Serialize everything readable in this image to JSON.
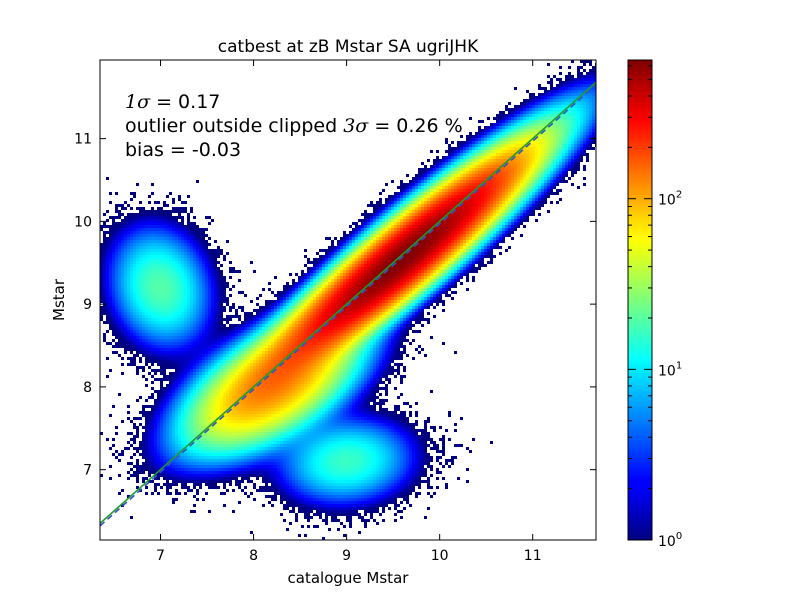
{
  "chart_data": {
    "type": "heatmap",
    "title": "catbest at zB Mstar SA ugriJHK",
    "xlabel": "catalogue Mstar",
    "ylabel": "Mstar",
    "xlim": [
      6.35,
      11.68
    ],
    "ylim": [
      6.15,
      11.95
    ],
    "x_ticks": [
      "7",
      "8",
      "9",
      "10",
      "11"
    ],
    "y_ticks": [
      "7",
      "8",
      "9",
      "10",
      "11"
    ],
    "x_tick_values": [
      7,
      8,
      9,
      10,
      11
    ],
    "y_tick_values": [
      7,
      8,
      9,
      10,
      11
    ],
    "grid": false,
    "colormap": "jet",
    "colorbar": {
      "scale": "log",
      "range": [
        1,
        650
      ],
      "ticks": [
        {
          "value": 1,
          "base": "10",
          "exp": "0"
        },
        {
          "value": 10,
          "base": "10",
          "exp": "1"
        },
        {
          "value": 100,
          "base": "10",
          "exp": "2"
        }
      ]
    },
    "reference_lines": [
      {
        "type": "one-to-one",
        "style": "solid",
        "color": "#1a9e2a"
      },
      {
        "type": "fit",
        "style": "dashed",
        "color": "#3a4fc4",
        "offset": -0.03
      }
    ],
    "annotations": {
      "sigma_symbol": "1σ",
      "sigma_text": " = 0.17",
      "outlier_text": "outlier outside clipped ",
      "outlier_symbol": "3σ",
      "outlier_value": " = 0.26 %",
      "bias_text": "bias = -0.03"
    },
    "density_clusters": [
      {
        "x": 9.6,
        "y": 9.55,
        "sx": 0.9,
        "sy": 0.17,
        "corr": 0.97,
        "weight": 1.0
      },
      {
        "x": 8.2,
        "y": 8.0,
        "sx": 0.5,
        "sy": 0.25,
        "corr": 0.8,
        "weight": 0.18
      },
      {
        "x": 7.0,
        "y": 9.2,
        "sx": 0.25,
        "sy": 0.35,
        "corr": 0.3,
        "weight": 0.03
      },
      {
        "x": 9.0,
        "y": 7.1,
        "sx": 0.35,
        "sy": 0.25,
        "corr": 0.2,
        "weight": 0.025
      }
    ]
  }
}
